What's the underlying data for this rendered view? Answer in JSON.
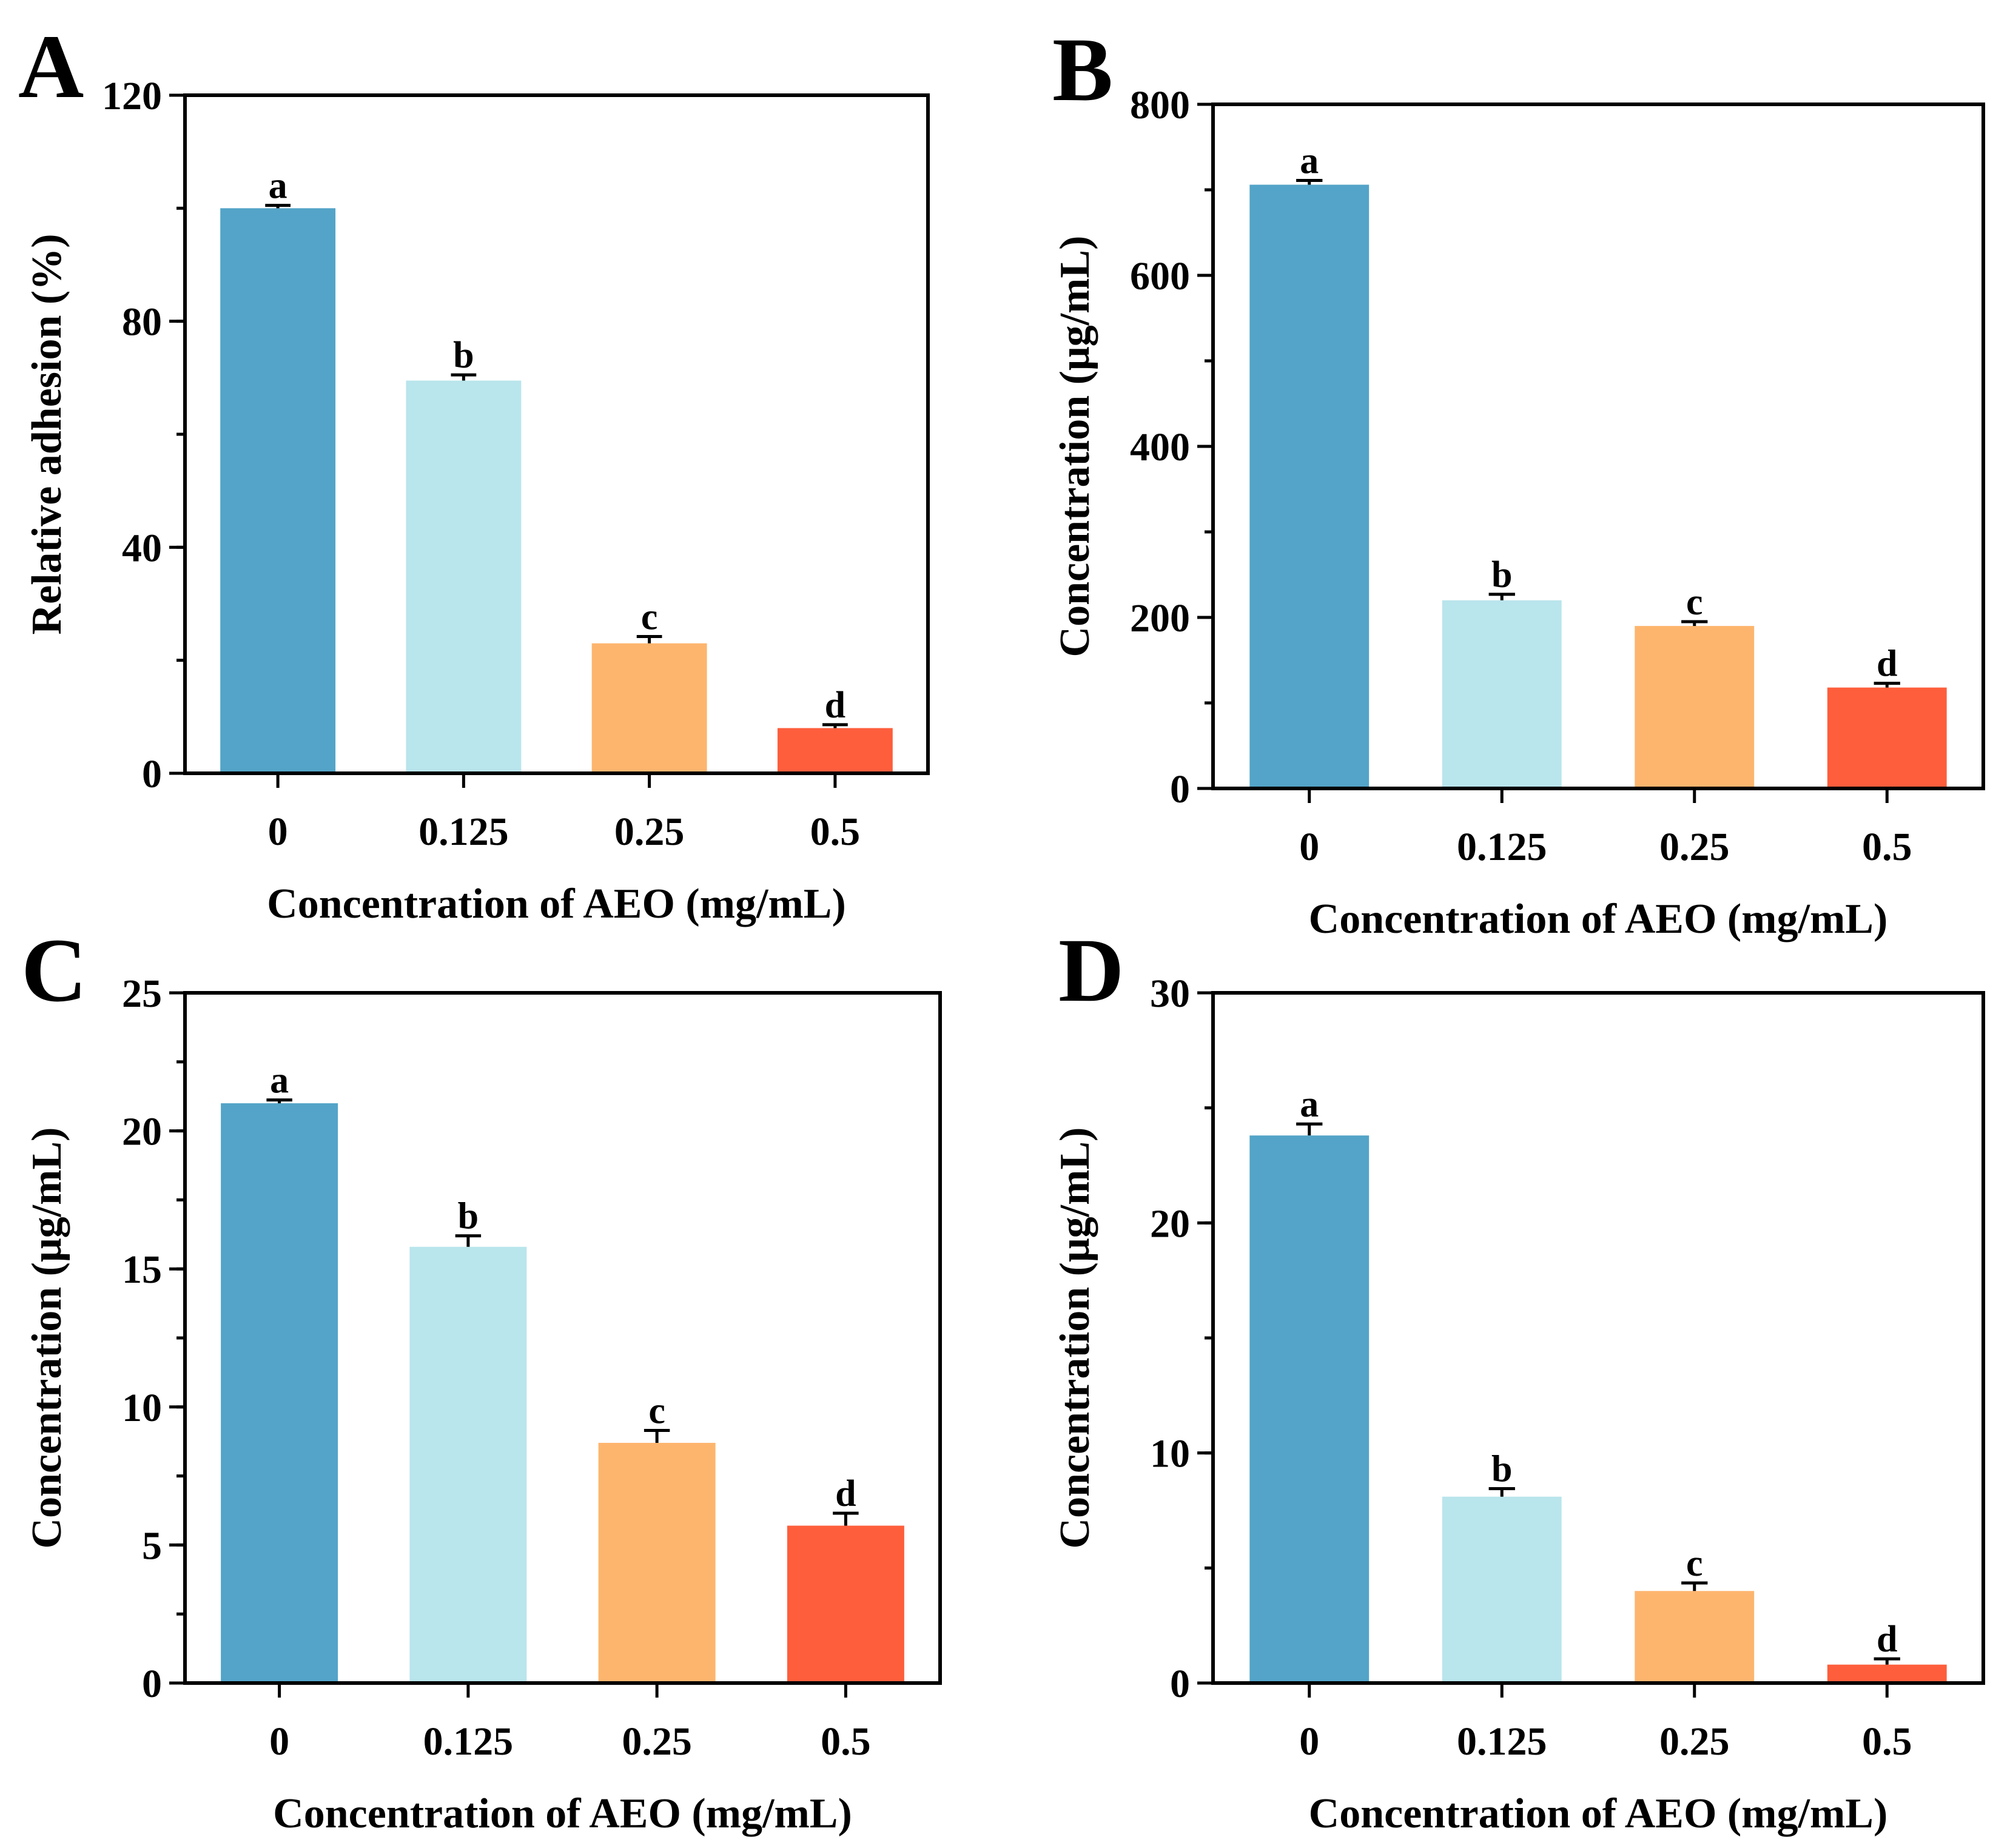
{
  "chart_data": [
    {
      "panel": "A",
      "type": "bar",
      "categories": [
        "0",
        "0.125",
        "0.25",
        "0.5"
      ],
      "values": [
        100,
        69.5,
        23,
        8
      ],
      "errors": [
        0.5,
        1.0,
        1.2,
        0.6
      ],
      "significance": [
        "a",
        "b",
        "c",
        "d"
      ],
      "colors": [
        "#53A4C8",
        "#B9E5EC",
        "#FDB56E",
        "#FE5E3C"
      ],
      "xlabel": "Concentration of AEO (mg/mL)",
      "ylabel": "Relative adhesion (%)",
      "ylim": [
        0,
        120
      ],
      "yticks": [
        0,
        40,
        80,
        120
      ],
      "yticklabels": [
        "0",
        "40",
        "80",
        "120"
      ],
      "minor_step": 20
    },
    {
      "panel": "B",
      "type": "bar",
      "categories": [
        "0",
        "0.125",
        "0.25",
        "0.5"
      ],
      "values": [
        706,
        220,
        190,
        118
      ],
      "errors": [
        5,
        7,
        5,
        5
      ],
      "significance": [
        "a",
        "b",
        "c",
        "d"
      ],
      "colors": [
        "#53A4C8",
        "#B9E5EC",
        "#FDB56E",
        "#FE5E3C"
      ],
      "xlabel": "Concentration of AEO (mg/mL)",
      "ylabel": "Concentration (μg/mL)",
      "ylim": [
        0,
        800
      ],
      "yticks": [
        0,
        200,
        400,
        600,
        800
      ],
      "yticklabels": [
        "0",
        "200",
        "400",
        "600",
        "800"
      ],
      "minor_step": 100
    },
    {
      "panel": "C",
      "type": "bar",
      "categories": [
        "0",
        "0.125",
        "0.25",
        "0.5"
      ],
      "values": [
        21.0,
        15.8,
        8.7,
        5.7
      ],
      "errors": [
        0.12,
        0.4,
        0.45,
        0.45
      ],
      "significance": [
        "a",
        "b",
        "c",
        "d"
      ],
      "colors": [
        "#53A4C8",
        "#B9E5EC",
        "#FDB56E",
        "#FE5E3C"
      ],
      "xlabel": "Concentration of AEO (mg/mL)",
      "ylabel": "Concentration (μg/mL)",
      "ylim": [
        0,
        25
      ],
      "yticks": [
        0,
        5,
        10,
        15,
        20,
        25
      ],
      "yticklabels": [
        "0",
        "5",
        "10",
        "15",
        "20",
        "25"
      ],
      "minor_step": 2.5
    },
    {
      "panel": "D",
      "type": "bar",
      "categories": [
        "0",
        "0.125",
        "0.25",
        "0.5"
      ],
      "values": [
        23.8,
        8.1,
        4.0,
        0.8
      ],
      "errors": [
        0.5,
        0.35,
        0.35,
        0.25
      ],
      "significance": [
        "a",
        "b",
        "c",
        "d"
      ],
      "colors": [
        "#53A4C8",
        "#B9E5EC",
        "#FDB56E",
        "#FE5E3C"
      ],
      "xlabel": "Concentration of AEO (mg/mL)",
      "ylabel": "Concentration (μg/mL)",
      "ylim": [
        0,
        30
      ],
      "yticks": [
        0,
        10,
        20,
        30
      ],
      "yticklabels": [
        "0",
        "10",
        "20",
        "30"
      ],
      "minor_step": 5
    }
  ]
}
